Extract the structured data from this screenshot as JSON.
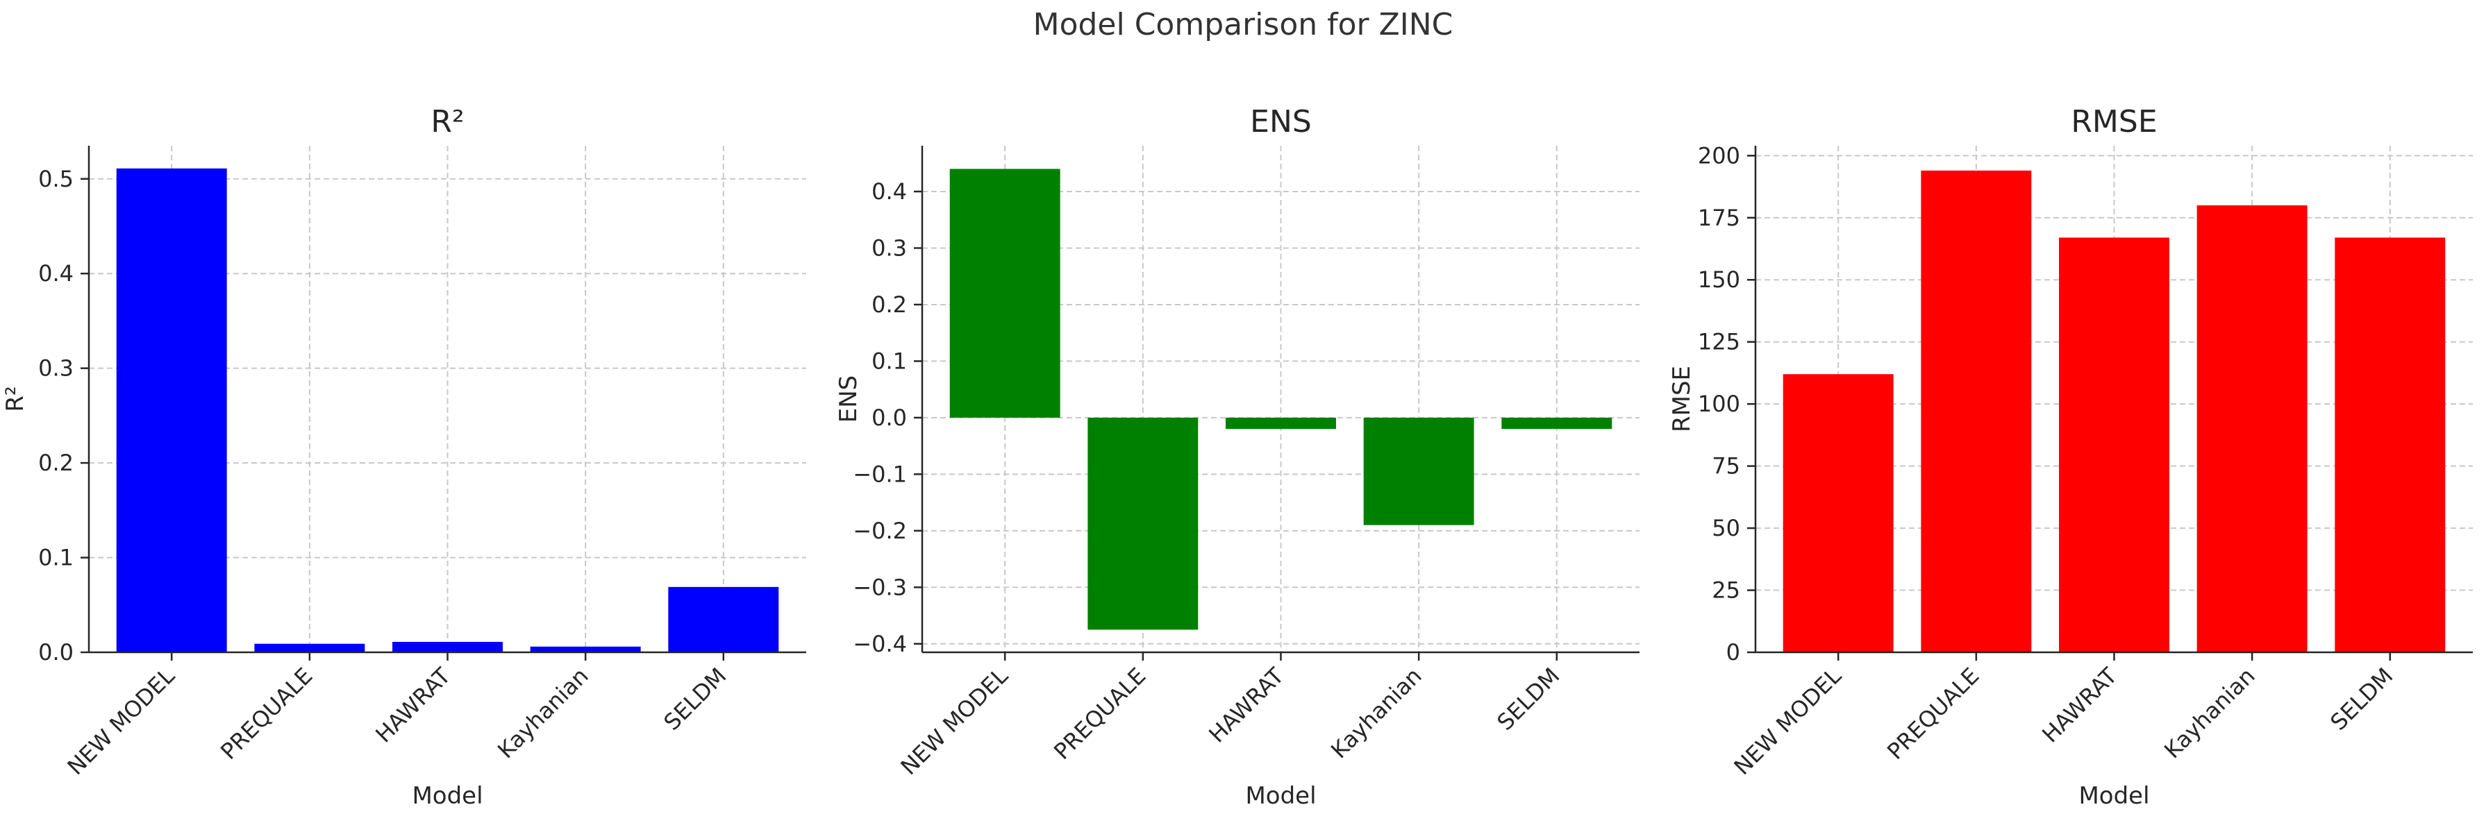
{
  "figure": {
    "suptitle": "Model Comparison for ZINC"
  },
  "chart_data": [
    {
      "type": "bar",
      "title": "R²",
      "xlabel": "Model",
      "ylabel": "R²",
      "categories": [
        "NEW MODEL",
        "PREQUALE",
        "HAWRAT",
        "Kayhanian",
        "SELDM"
      ],
      "values": [
        0.511,
        0.009,
        0.011,
        0.006,
        0.069
      ],
      "ylim": [
        0,
        0.535
      ],
      "yticks": [
        0,
        0.1,
        0.2,
        0.3,
        0.4,
        0.5
      ],
      "ytick_labels": [
        "0.0",
        "0.1",
        "0.2",
        "0.3",
        "0.4",
        "0.5"
      ],
      "color": "#0000ff",
      "grid": true
    },
    {
      "type": "bar",
      "title": "ENS",
      "xlabel": "Model",
      "ylabel": "ENS",
      "categories": [
        "NEW MODEL",
        "PREQUALE",
        "HAWRAT",
        "Kayhanian",
        "SELDM"
      ],
      "values": [
        0.44,
        -0.375,
        -0.02,
        -0.19,
        -0.02
      ],
      "ylim": [
        -0.415,
        0.481
      ],
      "yticks": [
        -0.4,
        -0.3,
        -0.2,
        -0.1,
        0,
        0.1,
        0.2,
        0.3,
        0.4
      ],
      "ytick_labels": [
        "−0.4",
        "−0.3",
        "−0.2",
        "−0.1",
        "0.0",
        "0.1",
        "0.2",
        "0.3",
        "0.4"
      ],
      "color": "#008000",
      "grid": true
    },
    {
      "type": "bar",
      "title": "RMSE",
      "xlabel": "Model",
      "ylabel": "RMSE",
      "categories": [
        "NEW MODEL",
        "PREQUALE",
        "HAWRAT",
        "Kayhanian",
        "SELDM"
      ],
      "values": [
        112,
        194,
        167,
        180,
        167
      ],
      "ylim": [
        0,
        204
      ],
      "yticks": [
        0,
        25,
        50,
        75,
        100,
        125,
        150,
        175,
        200
      ],
      "ytick_labels": [
        "0",
        "25",
        "50",
        "75",
        "100",
        "125",
        "150",
        "175",
        "200"
      ],
      "color": "#ff0000",
      "grid": true
    }
  ]
}
